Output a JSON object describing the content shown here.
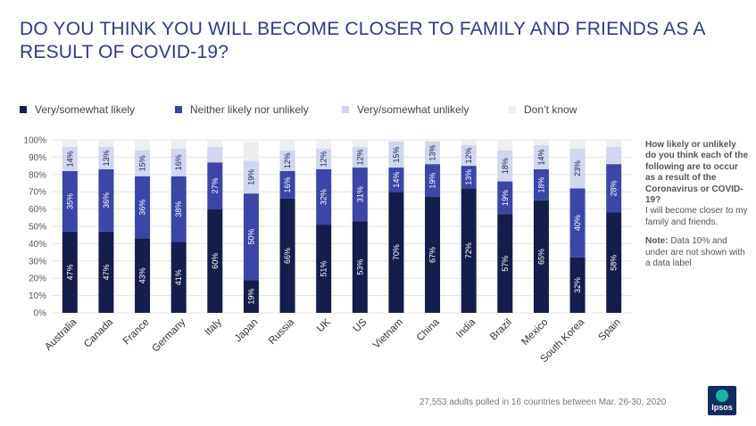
{
  "title": "DO YOU THINK YOU WILL BECOME CLOSER TO FAMILY AND FRIENDS AS A RESULT OF COVID-19?",
  "colors": {
    "likely": "#141d4b",
    "neither": "#3a46a8",
    "unlikely": "#d0d7ee",
    "dontknow": "#eeeeee",
    "title": "#2e3b8f"
  },
  "side_text": {
    "question": "How likely or unlikely do you think each of the following are to occur as a result of the Coronavirus or COVID-19?",
    "statement": "I will become closer to my family and friends.",
    "note_label": "Note:",
    "note_text": "Data 10% and under are not shown with a data label"
  },
  "footer": "27,553 adults polled in 16 countries between Mar. 26-30, 2020",
  "logo_text": "Ipsos",
  "chart_data": {
    "type": "bar",
    "stacked": true,
    "title": "DO YOU THINK YOU WILL BECOME CLOSER TO FAMILY AND FRIENDS AS A RESULT OF COVID-19?",
    "categories": [
      "Australia",
      "Canada",
      "France",
      "Germany",
      "Italy",
      "Japan",
      "Russia",
      "UK",
      "US",
      "Vietnam",
      "China",
      "India",
      "Brazil",
      "Mexico",
      "South Korea",
      "Spain"
    ],
    "series": [
      {
        "name": "Very/somewhat likely",
        "key": "likely",
        "values": [
          47,
          47,
          43,
          41,
          60,
          19,
          66,
          51,
          53,
          70,
          67,
          72,
          57,
          65,
          32,
          58
        ]
      },
      {
        "name": "Neither likely nor unlikely",
        "key": "neither",
        "values": [
          35,
          36,
          36,
          38,
          27,
          50,
          16,
          32,
          31,
          14,
          19,
          13,
          19,
          18,
          40,
          28
        ]
      },
      {
        "name": "Very/somewhat unlikely",
        "key": "unlikely",
        "values": [
          14,
          13,
          15,
          16,
          9,
          19,
          12,
          12,
          12,
          15,
          13,
          12,
          18,
          14,
          23,
          10
        ]
      },
      {
        "name": "Don’t know",
        "key": "dontknow",
        "values": [
          4,
          4,
          6,
          5,
          4,
          11,
          6,
          5,
          4,
          1,
          1,
          3,
          6,
          3,
          5,
          4
        ]
      }
    ],
    "ytick_labels": [
      "0%",
      "10%",
      "20%",
      "30%",
      "40%",
      "50%",
      "60%",
      "70%",
      "80%",
      "90%",
      "100%"
    ],
    "ylim": [
      0,
      100
    ],
    "label_threshold": 10,
    "legend_position": "top",
    "grid": true,
    "xlabel": "",
    "ylabel": ""
  }
}
